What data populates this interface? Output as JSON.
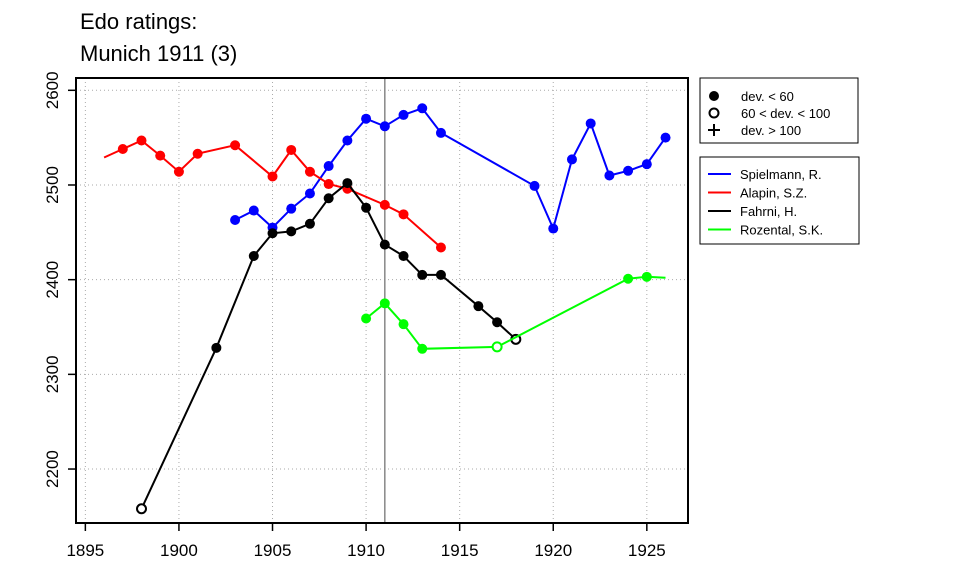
{
  "chart_data": {
    "type": "line",
    "title_lines": [
      "Edo ratings:",
      "Munich 1911 (3)"
    ],
    "xlabel": "",
    "ylabel": "",
    "xlim": [
      1894.5,
      1927.2
    ],
    "ylim": [
      2143,
      2613
    ],
    "x_ticks": [
      1895,
      1900,
      1905,
      1910,
      1915,
      1920,
      1925
    ],
    "y_ticks": [
      2200,
      2300,
      2400,
      2500,
      2600
    ],
    "grid": true,
    "event_marker_x": 1911,
    "legend_markers": [
      {
        "symbol": "filled-circle",
        "label": "dev. < 60"
      },
      {
        "symbol": "open-circle",
        "label": "60 < dev. < 100"
      },
      {
        "symbol": "plus",
        "label": "dev. > 100"
      }
    ],
    "series": [
      {
        "name": "Spielmann, R.",
        "color": "#0000ff",
        "points": [
          {
            "x": 1903,
            "y": 2463,
            "m": "filled"
          },
          {
            "x": 1904,
            "y": 2473,
            "m": "filled"
          },
          {
            "x": 1905,
            "y": 2455,
            "m": "filled"
          },
          {
            "x": 1906,
            "y": 2475,
            "m": "filled"
          },
          {
            "x": 1907,
            "y": 2491,
            "m": "filled"
          },
          {
            "x": 1908,
            "y": 2520,
            "m": "filled"
          },
          {
            "x": 1909,
            "y": 2547,
            "m": "filled"
          },
          {
            "x": 1910,
            "y": 2570,
            "m": "filled"
          },
          {
            "x": 1911,
            "y": 2562,
            "m": "filled"
          },
          {
            "x": 1912,
            "y": 2574,
            "m": "filled"
          },
          {
            "x": 1913,
            "y": 2581,
            "m": "filled"
          },
          {
            "x": 1914,
            "y": 2555,
            "m": "filled"
          },
          {
            "x": 1919,
            "y": 2499,
            "m": "filled"
          },
          {
            "x": 1920,
            "y": 2454,
            "m": "filled"
          },
          {
            "x": 1921,
            "y": 2527,
            "m": "filled"
          },
          {
            "x": 1922,
            "y": 2565,
            "m": "filled"
          },
          {
            "x": 1923,
            "y": 2510,
            "m": "filled"
          },
          {
            "x": 1924,
            "y": 2515,
            "m": "filled"
          },
          {
            "x": 1925,
            "y": 2522,
            "m": "filled"
          },
          {
            "x": 1926,
            "y": 2550,
            "m": "filled"
          }
        ]
      },
      {
        "name": "Alapin, S.Z.",
        "color": "#ff0000",
        "points": [
          {
            "x": 1896,
            "y": 2529,
            "m": "none"
          },
          {
            "x": 1897,
            "y": 2538,
            "m": "filled"
          },
          {
            "x": 1898,
            "y": 2547,
            "m": "filled"
          },
          {
            "x": 1899,
            "y": 2531,
            "m": "filled"
          },
          {
            "x": 1900,
            "y": 2514,
            "m": "filled"
          },
          {
            "x": 1901,
            "y": 2533,
            "m": "filled"
          },
          {
            "x": 1903,
            "y": 2542,
            "m": "filled"
          },
          {
            "x": 1905,
            "y": 2509,
            "m": "filled"
          },
          {
            "x": 1906,
            "y": 2537,
            "m": "filled"
          },
          {
            "x": 1907,
            "y": 2514,
            "m": "filled"
          },
          {
            "x": 1908,
            "y": 2501,
            "m": "filled"
          },
          {
            "x": 1909,
            "y": 2496,
            "m": "filled"
          },
          {
            "x": 1911,
            "y": 2479,
            "m": "filled"
          },
          {
            "x": 1912,
            "y": 2469,
            "m": "filled"
          },
          {
            "x": 1914,
            "y": 2434,
            "m": "filled"
          }
        ]
      },
      {
        "name": "Fahrni, H.",
        "color": "#000000",
        "points": [
          {
            "x": 1898,
            "y": 2158,
            "m": "open"
          },
          {
            "x": 1902,
            "y": 2328,
            "m": "filled"
          },
          {
            "x": 1904,
            "y": 2425,
            "m": "filled"
          },
          {
            "x": 1905,
            "y": 2449,
            "m": "filled"
          },
          {
            "x": 1906,
            "y": 2451,
            "m": "filled"
          },
          {
            "x": 1907,
            "y": 2459,
            "m": "filled"
          },
          {
            "x": 1908,
            "y": 2486,
            "m": "filled"
          },
          {
            "x": 1909,
            "y": 2502,
            "m": "filled"
          },
          {
            "x": 1910,
            "y": 2476,
            "m": "filled"
          },
          {
            "x": 1911,
            "y": 2437,
            "m": "filled"
          },
          {
            "x": 1912,
            "y": 2425,
            "m": "filled"
          },
          {
            "x": 1913,
            "y": 2405,
            "m": "filled"
          },
          {
            "x": 1914,
            "y": 2405,
            "m": "filled"
          },
          {
            "x": 1916,
            "y": 2372,
            "m": "filled"
          },
          {
            "x": 1917,
            "y": 2355,
            "m": "filled"
          },
          {
            "x": 1918,
            "y": 2337,
            "m": "open"
          }
        ]
      },
      {
        "name": "Rozental, S.K.",
        "color": "#00ff00",
        "points": [
          {
            "x": 1910,
            "y": 2359,
            "m": "filled"
          },
          {
            "x": 1911,
            "y": 2375,
            "m": "filled"
          },
          {
            "x": 1912,
            "y": 2353,
            "m": "filled"
          },
          {
            "x": 1913,
            "y": 2327,
            "m": "filled"
          },
          {
            "x": 1917,
            "y": 2329,
            "m": "open"
          },
          {
            "x": 1924,
            "y": 2401,
            "m": "filled"
          },
          {
            "x": 1925,
            "y": 2403,
            "m": "filled"
          },
          {
            "x": 1926,
            "y": 2402,
            "m": "none"
          }
        ]
      }
    ]
  }
}
